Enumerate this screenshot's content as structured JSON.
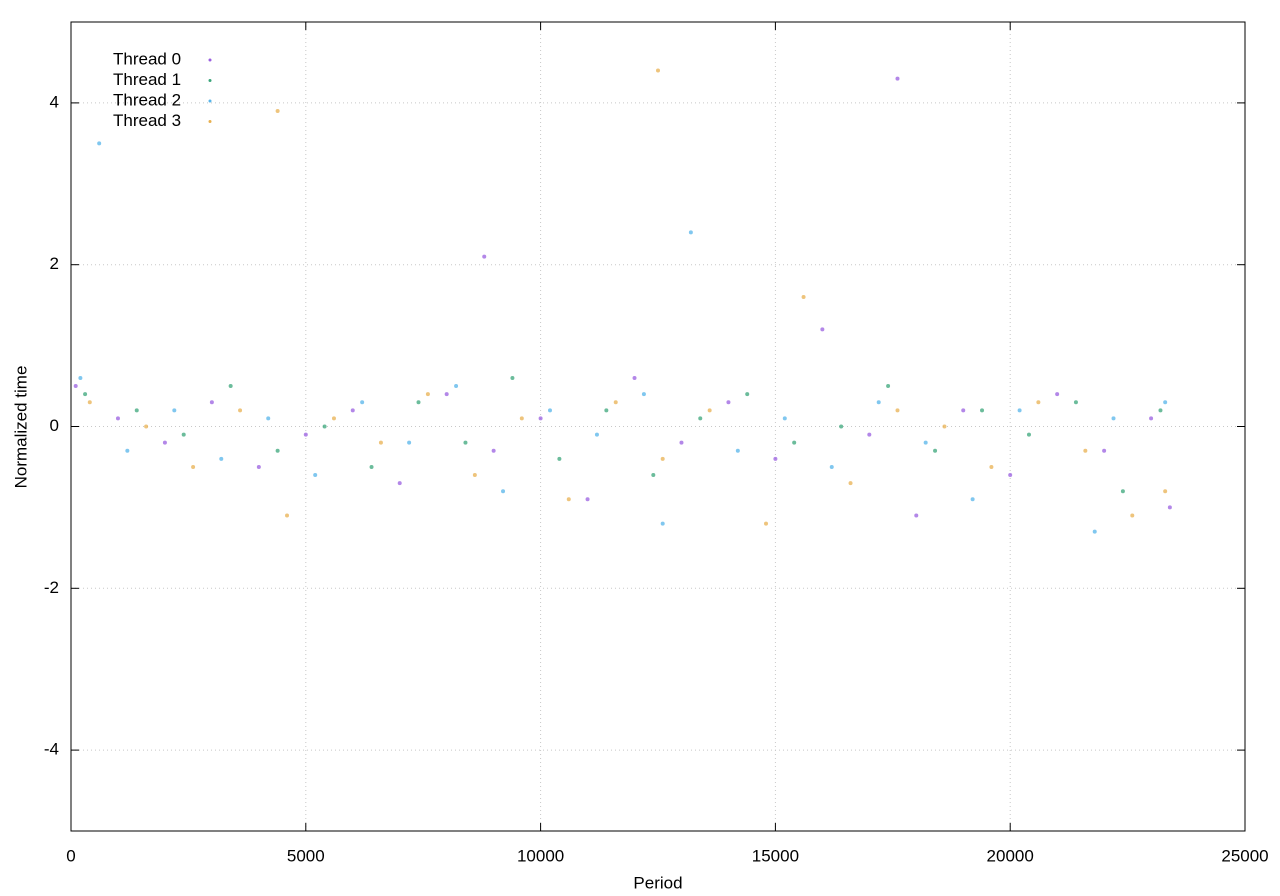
{
  "chart_data": {
    "type": "scatter",
    "xlabel": "Period",
    "ylabel": "Normalized time",
    "xlim": [
      0,
      25000
    ],
    "ylim": [
      -5,
      5
    ],
    "xticks": [
      0,
      5000,
      10000,
      15000,
      20000,
      25000
    ],
    "yticks": [
      -4,
      -2,
      0,
      2,
      4
    ],
    "grid": true,
    "legend": "upper left",
    "series": [
      {
        "name": "Thread 0",
        "color": "#9a5fe0",
        "x": [
          100,
          1000,
          2000,
          3000,
          4000,
          5000,
          6000,
          7000,
          8000,
          9000,
          10000,
          11000,
          12000,
          13000,
          14000,
          15000,
          16000,
          17000,
          18000,
          19000,
          20000,
          21000,
          22000,
          23000,
          23400,
          17600,
          8800
        ],
        "y": [
          0.5,
          0.1,
          -0.2,
          0.3,
          -0.5,
          -0.1,
          0.2,
          -0.7,
          0.4,
          -0.3,
          0.1,
          -0.9,
          0.6,
          -0.2,
          0.3,
          -0.4,
          1.2,
          -0.1,
          -1.1,
          0.2,
          -0.6,
          0.4,
          -0.3,
          0.1,
          -1.0,
          4.3,
          2.1
        ]
      },
      {
        "name": "Thread 1",
        "color": "#3aa57a",
        "x": [
          300,
          1400,
          2400,
          3400,
          4400,
          5400,
          6400,
          7400,
          8400,
          9400,
          10400,
          11400,
          12400,
          13400,
          14400,
          15400,
          16400,
          17400,
          18400,
          19400,
          20400,
          21400,
          22400,
          23200
        ],
        "y": [
          0.4,
          0.2,
          -0.1,
          0.5,
          -0.3,
          0.0,
          -0.5,
          0.3,
          -0.2,
          0.6,
          -0.4,
          0.2,
          -0.6,
          0.1,
          0.4,
          -0.2,
          0.0,
          0.5,
          -0.3,
          0.2,
          -0.1,
          0.3,
          -0.8,
          0.2
        ]
      },
      {
        "name": "Thread 2",
        "color": "#56b4e9",
        "x": [
          200,
          1200,
          2200,
          3200,
          4200,
          5200,
          6200,
          7200,
          8200,
          9200,
          10200,
          11200,
          12200,
          12600,
          14200,
          15200,
          16200,
          17200,
          18200,
          19200,
          20200,
          21800,
          22200,
          23300,
          600,
          13200
        ],
        "y": [
          0.6,
          -0.3,
          0.2,
          -0.4,
          0.1,
          -0.6,
          0.3,
          -0.2,
          0.5,
          -0.8,
          0.2,
          -0.1,
          0.4,
          -1.2,
          -0.3,
          0.1,
          -0.5,
          0.3,
          -0.2,
          -0.9,
          0.2,
          -1.3,
          0.1,
          0.3,
          3.5,
          2.4
        ]
      },
      {
        "name": "Thread 3",
        "color": "#e8b050",
        "x": [
          400,
          1600,
          2600,
          3600,
          4600,
          5600,
          6600,
          7600,
          8600,
          9600,
          10600,
          11600,
          12600,
          13600,
          14800,
          15600,
          16600,
          17600,
          18600,
          19600,
          20600,
          21600,
          22600,
          23300,
          12500,
          4400
        ],
        "y": [
          0.3,
          0.0,
          -0.5,
          0.2,
          -1.1,
          0.1,
          -0.2,
          0.4,
          -0.6,
          0.1,
          -0.9,
          0.3,
          -0.4,
          0.2,
          -1.2,
          1.6,
          -0.7,
          0.2,
          0.0,
          -0.5,
          0.3,
          -0.3,
          -1.1,
          -0.8,
          4.4,
          3.9
        ]
      }
    ]
  }
}
